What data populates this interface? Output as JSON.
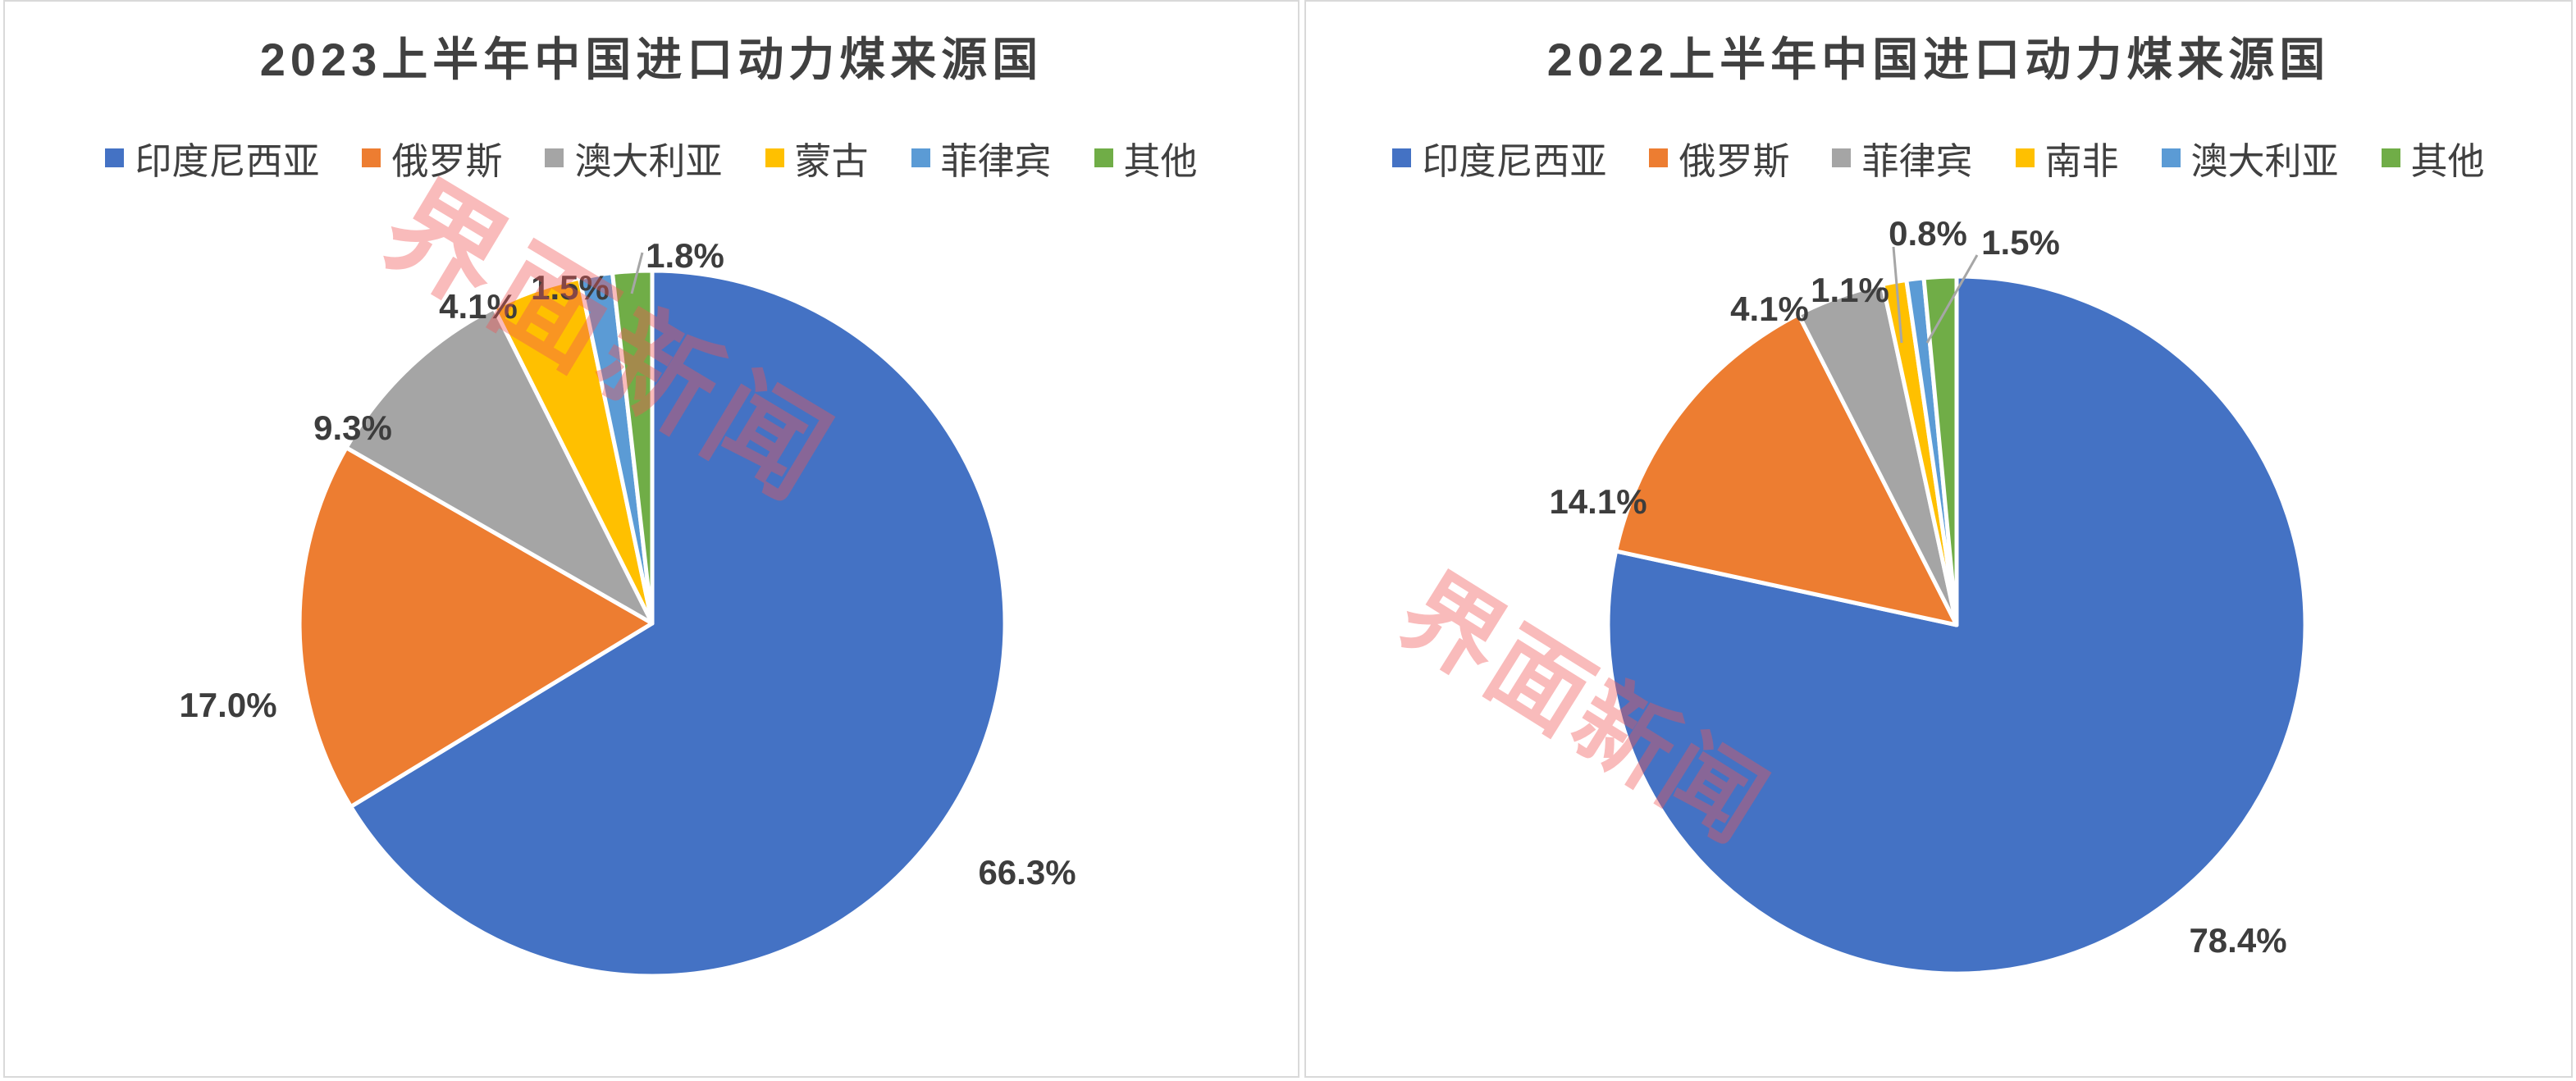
{
  "page": {
    "background": "#ffffff",
    "panel_border_color": "#d9d9d9"
  },
  "watermark": {
    "text": "界面新闻",
    "color": "rgba(240,85,85,0.40)"
  },
  "chart_data": [
    {
      "type": "pie",
      "title": "2023上半年中国进口动力煤来源国",
      "categories": [
        "印度尼西亚",
        "俄罗斯",
        "澳大利亚",
        "蒙古",
        "菲律宾",
        "其他"
      ],
      "values": [
        66.3,
        17.0,
        9.3,
        4.1,
        1.5,
        1.8
      ],
      "labels": [
        "66.3%",
        "17.0%",
        "9.3%",
        "4.1%",
        "1.5%",
        "1.8%"
      ],
      "colors": [
        "#4472C4",
        "#ED7D31",
        "#A5A5A5",
        "#FFC000",
        "#5B9BD5",
        "#70AD47"
      ],
      "legend_position": "top",
      "label_position": "outside",
      "start_angle_deg": 0,
      "direction": "clockwise"
    },
    {
      "type": "pie",
      "title": "2022上半年中国进口动力煤来源国",
      "categories": [
        "印度尼西亚",
        "俄罗斯",
        "菲律宾",
        "南非",
        "澳大利亚",
        "其他"
      ],
      "values": [
        78.4,
        14.1,
        4.1,
        1.1,
        0.8,
        1.5
      ],
      "labels": [
        "78.4%",
        "14.1%",
        "4.1%",
        "1.1%",
        "0.8%",
        "1.5%"
      ],
      "colors": [
        "#4472C4",
        "#ED7D31",
        "#A5A5A5",
        "#FFC000",
        "#5B9BD5",
        "#70AD47"
      ],
      "legend_position": "top",
      "label_position": "outside",
      "start_angle_deg": 0,
      "direction": "clockwise"
    }
  ]
}
